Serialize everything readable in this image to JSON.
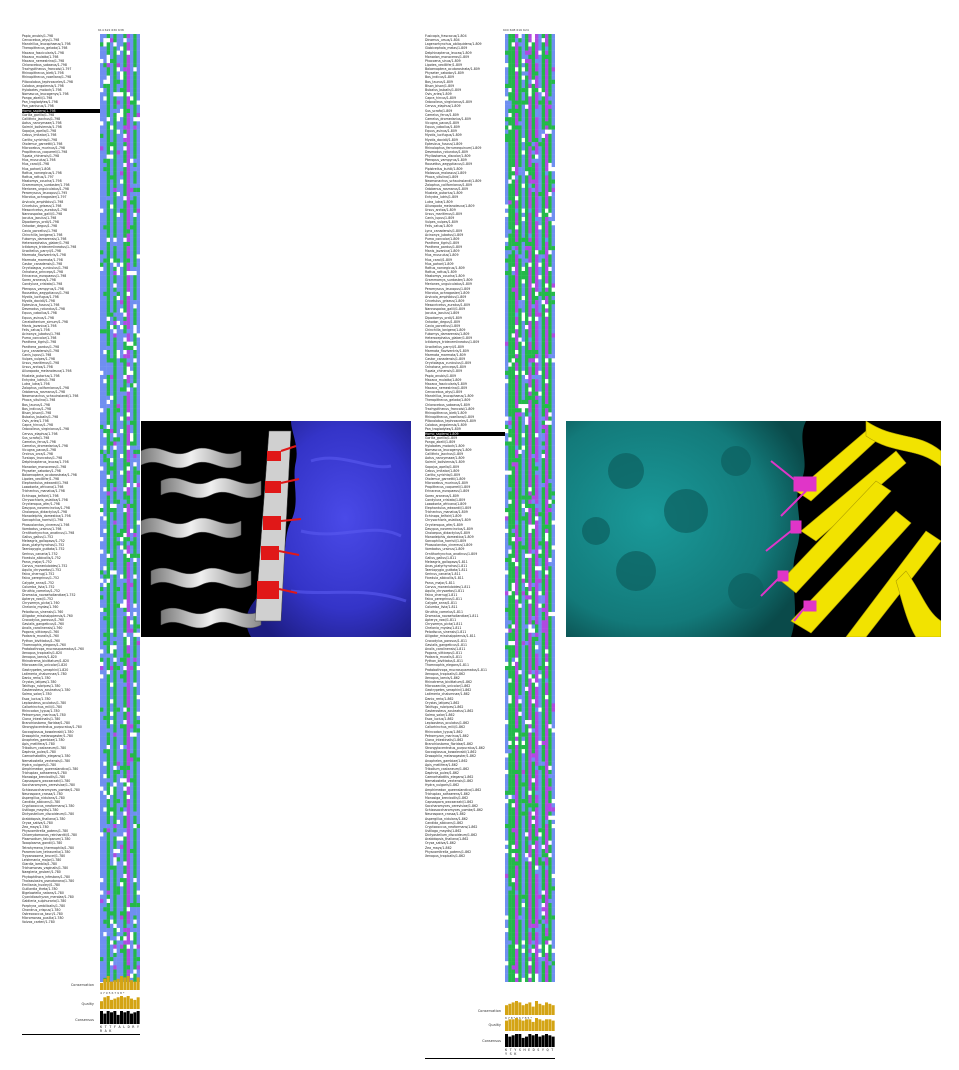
{
  "left_panel": {
    "header_numbers": "614  622  630  638",
    "sequence_names": [
      "Papio_anubis/1-798",
      "Cercocebus_atys/1-798",
      "Mandrillus_leucophaeus/1-798",
      "Theropithecus_gelada/1-798",
      "Macaca_fascicularis/1-798",
      "Macaca_mulatta/1-798",
      "Macaca_nemestrina/1-798",
      "Chlorocebus_sabaeus/1-798",
      "Trachypithecus_francoisi/1-797",
      "Rhinopithecus_bieti/1-798",
      "Rhinopithecus_roxellana/1-798",
      "Piliocolobus_tephrosceles/1-798",
      "Colobus_angolensis/1-798",
      "Hylobates_moloch/1-798",
      "Nomascus_leucogenys/1-798",
      "Pongo_abelii/1-798",
      "Pan_troglodytes/1-798",
      "Pan_paniscus/1-798",
      "Homo_sapiens/1-798",
      "Gorilla_gorilla/1-798",
      "Callithrix_jacchus/1-798",
      "Aotus_nancymaae/1-798",
      "Saimiri_boliviensis/1-798",
      "Sapajus_apella/1-798",
      "Cebus_imitator/1-798",
      "Carlito_syrichta/1-798",
      "Otolemur_garnettii/1-798",
      "Microcebus_murinus/1-798",
      "Propithecus_coquereli/1-798",
      "Tupaia_chinensis/1-798",
      "Mus_musculus/1-798",
      "Mus_caroli/1-798",
      "Mus_pahari/1-808",
      "Rattus_norvegicus/1-798",
      "Rattus_rattus/1-797",
      "Mastomys_coucha/1-798",
      "Grammomys_surdaster/1-798",
      "Meriones_unguiculatus/1-798",
      "Peromyscus_leucopus/1-795",
      "Microtus_ochrogaster/1-797",
      "Arvicola_amphibius/1-798",
      "Cricetulus_griseus/1-798",
      "Mesocricetus_auratus/1-798",
      "Nannospalax_galili/1-798",
      "Jaculus_jaculus/1-798",
      "Dipodomys_ordii/1-798",
      "Octodon_degus/1-798",
      "Cavia_porcellus/1-798",
      "Chinchilla_lanigera/1-798",
      "Fukomys_damarensis/1-798",
      "Heterocephalus_glaber/1-798",
      "Ictidomys_tridecemlineatus/1-798",
      "Urocitellus_parryii/1-798",
      "Marmota_flaviventris/1-798",
      "Marmota_marmota/1-798",
      "Castor_canadensis/1-798",
      "Oryctolagus_cuniculus/1-798",
      "Ochotona_princeps/1-798",
      "Erinaceus_europaeus/1-798",
      "Sorex_araneus/1-798",
      "Condylura_cristata/1-798",
      "Pteropus_vampyrus/1-798",
      "Rousettus_aegyptiacus/1-798",
      "Myotis_lucifugus/1-798",
      "Myotis_davidii/1-798",
      "Eptesicus_fuscus/1-798",
      "Desmodus_rotundus/1-798",
      "Equus_caballus/1-798",
      "Equus_asinus/1-798",
      "Ceratotherium_simum/1-798",
      "Manis_javanica/1-798",
      "Felis_catus/1-798",
      "Acinonyx_jubatus/1-798",
      "Puma_concolor/1-798",
      "Panthera_tigris/1-798",
      "Panthera_pardus/1-798",
      "Lynx_canadensis/1-798",
      "Canis_lupus/1-798",
      "Vulpes_vulpes/1-798",
      "Ursus_maritimus/1-798",
      "Ursus_arctos/1-798",
      "Ailuropoda_melanoleuca/1-798",
      "Mustela_putorius/1-798",
      "Enhydra_lutris/1-798",
      "Lutra_lutra/1-798",
      "Zalophus_californianus/1-798",
      "Odobenus_rosmarus/1-798",
      "Neomonachus_schauinslandi/1-798",
      "Phoca_vitulina/1-798",
      "Bos_taurus/1-798",
      "Bos_indicus/1-798",
      "Bison_bison/1-798",
      "Bubalus_bubalis/1-798",
      "Ovis_aries/1-798",
      "Capra_hircus/1-798",
      "Odocoileus_virginianus/1-798",
      "Cervus_elaphus/1-798",
      "Sus_scrofa/1-798",
      "Camelus_ferus/1-798",
      "Camelus_dromedarius/1-798",
      "Vicugna_pacos/1-798",
      "Orcinus_orca/1-798",
      "Tursiops_truncatus/1-798",
      "Delphinapterus_leucas/1-798",
      "Monodon_monoceros/1-798",
      "Physeter_catodon/1-798",
      "Balaenoptera_acutorostrata/1-798",
      "Lipotes_vexillifer/1-798",
      "Elephantulus_edwardii/1-798",
      "Loxodonta_africana/1-798",
      "Trichechus_manatus/1-798",
      "Echinops_telfairi/1-798",
      "Chrysochloris_asiatica/1-798",
      "Orycteropus_afer/1-798",
      "Dasypus_novemcinctus/1-798",
      "Choloepus_didactylus/1-798",
      "Monodelphis_domestica/1-798",
      "Sarcophilus_harrisii/1-798",
      "Phascolarctos_cinereus/1-798",
      "Vombatus_ursinus/1-798",
      "Ornithorhynchus_anatinus/1-798",
      "Gallus_gallus/1-752",
      "Meleagris_gallopavo/1-752",
      "Anas_platyrhynchos/1-752",
      "Taeniopygia_guttata/1-752",
      "Serinus_canaria/1-752",
      "Ficedula_albicollis/1-752",
      "Parus_major/1-752",
      "Corvus_moneduloides/1-752",
      "Aquila_chrysaetos/1-752",
      "Falco_cherrug/1-752",
      "Falco_peregrinus/1-752",
      "Calypte_anna/1-752",
      "Columba_livia/1-752",
      "Struthio_camelus/1-752",
      "Dromaius_novaehollandiae/1-752",
      "Apteryx_rowi/1-752",
      "Chrysemys_picta/1-760",
      "Chelonia_mydas/1-760",
      "Pelodiscus_sinensis/1-760",
      "Alligator_mississippiensis/1-760",
      "Crocodylus_porosus/1-760",
      "Gavialis_gangeticus/1-760",
      "Anolis_carolinensis/1-760",
      "Pogona_vitticeps/1-760",
      "Podarcis_muralis/1-760",
      "Python_bivittatus/1-760",
      "Thamnophis_elegans/1-760",
      "Protobothrops_mucrosquamatus/1-760",
      "Xenopus_tropicalis/1-820",
      "Xenopus_laevis/1-820",
      "Rhinatrema_bivittatum/1-820",
      "Microcaecilia_unicolor/1-820",
      "Geotrypetes_seraphini/1-820",
      "Latimeria_chalumnae/1-780",
      "Danio_rerio/1-780",
      "Oryzias_latipes/1-780",
      "Takifugu_rubripes/1-780",
      "Gasterosteus_aculeatus/1-780",
      "Salmo_salar/1-780",
      "Esox_lucius/1-780",
      "Lepisosteus_oculatus/1-780",
      "Callorhinchus_milii/1-780",
      "Rhincodon_typus/1-780",
      "Petromyzon_marinus/1-780",
      "Ciona_intestinalis/1-780",
      "Branchiostoma_floridae/1-780",
      "Strongylocentrotus_purpuratus/1-780",
      "Saccoglossus_kowalevskii/1-780",
      "Drosophila_melanogaster/1-780",
      "Anopheles_gambiae/1-780",
      "Apis_mellifera/1-780",
      "Tribolium_castaneum/1-780",
      "Daphnia_pulex/1-780",
      "Caenorhabditis_elegans/1-780",
      "Nematostella_vectensis/1-780",
      "Hydra_vulgaris/1-780",
      "Amphimedon_queenslandica/1-780",
      "Trichoplax_adhaerens/1-780",
      "Monosiga_brevicollis/1-780",
      "Capsaspora_owczarzaki/1-780",
      "Saccharomyces_cerevisiae/1-780",
      "Schizosaccharomyces_pombe/1-780",
      "Neurospora_crassa/1-780",
      "Aspergillus_nidulans/1-780",
      "Candida_albicans/1-780",
      "Cryptococcus_neoformans/1-780",
      "Ustilago_maydis/1-780",
      "Dictyostelium_discoideum/1-780",
      "Arabidopsis_thaliana/1-780",
      "Oryza_sativa/1-780",
      "Zea_mays/1-780",
      "Physcomitrella_patens/1-780",
      "Chlamydomonas_reinhardtii/1-780",
      "Plasmodium_falciparum/1-780",
      "Toxoplasma_gondii/1-780",
      "Tetrahymena_thermophila/1-780",
      "Paramecium_tetraurelia/1-780",
      "Trypanosoma_brucei/1-780",
      "Leishmania_major/1-780",
      "Giardia_lamblia/1-780",
      "Trichomonas_vaginalis/1-780",
      "Naegleria_gruberi/1-780",
      "Phytophthora_infestans/1-780",
      "Thalassiosira_pseudonana/1-780",
      "Emiliania_huxleyi/1-780",
      "Guillardia_theta/1-780",
      "Bigelowiella_natans/1-780",
      "Cyanidioschyzon_merolae/1-780",
      "Galdieria_sulphuraria/1-780",
      "Porphyra_umbilicalis/1-780",
      "Chondrus_crispus/1-780",
      "Ostreococcus_tauri/1-780",
      "Micromonas_pusilla/1-780",
      "Volvox_carteri/1-780"
    ],
    "conservation_label": "Conservation",
    "quality_label": "Quality",
    "consensus_label": "Consensus",
    "consensus_sequence": "K T T F A L D R Y R A K",
    "conservation_scores": "4 7 9 5 6 7 9 8 *"
  },
  "right_panel": {
    "header_numbers": "600  608  616  624",
    "sequence_names": [
      "Fusicapis_frascacus/1-804",
      "Dinomus_ursus/1-804",
      "Lagenorhynchus_obliquidens/1-809",
      "Globicephala_melas/1-809",
      "Delphinapterus_leucas/1-809",
      "Monodon_monoceros/1-809",
      "Phocoena_sinus/1-809",
      "Lipotes_vexillifer/1-809",
      "Balaenoptera_acutorostrata/1-809",
      "Physeter_catodon/1-809",
      "Bos_indicus/1-809",
      "Bos_taurus/1-809",
      "Bison_bison/1-809",
      "Bubalus_bubalis/1-809",
      "Ovis_aries/1-809",
      "Capra_hircus/1-809",
      "Odocoileus_virginianus/1-809",
      "Cervus_elaphus/1-809",
      "Sus_scrofa/1-809",
      "Camelus_ferus/1-809",
      "Camelus_dromedarius/1-809",
      "Vicugna_pacos/1-809",
      "Equus_caballus/1-809",
      "Equus_asinus/1-809",
      "Myotis_lucifugus/1-809",
      "Myotis_davidii/1-809",
      "Eptesicus_fuscus/1-809",
      "Rhinolophus_ferrumequinum/1-809",
      "Desmodus_rotundus/1-809",
      "Phyllostomus_discolor/1-809",
      "Pteropus_vampyrus/1-809",
      "Rousettus_aegyptiacus/1-809",
      "Pipistrellus_kuhlii/1-809",
      "Molossus_molossus/1-809",
      "Phoca_vitulina/1-809",
      "Neomonachus_schauinslandi/1-809",
      "Zalophus_californianus/1-809",
      "Odobenus_rosmarus/1-809",
      "Mustela_putorius/1-809",
      "Enhydra_lutris/1-809",
      "Lutra_lutra/1-809",
      "Ailuropoda_melanoleuca/1-809",
      "Ursus_arctos/1-809",
      "Ursus_maritimus/1-809",
      "Canis_lupus/1-809",
      "Vulpes_vulpes/1-809",
      "Felis_catus/1-809",
      "Lynx_canadensis/1-809",
      "Acinonyx_jubatus/1-809",
      "Puma_concolor/1-809",
      "Panthera_tigris/1-809",
      "Panthera_pardus/1-809",
      "Manis_javanica/1-809",
      "Mus_musculus/1-809",
      "Mus_caroli/1-809",
      "Mus_pahari/1-809",
      "Rattus_norvegicus/1-809",
      "Rattus_rattus/1-809",
      "Mastomys_coucha/1-809",
      "Grammomys_surdaster/1-809",
      "Meriones_unguiculatus/1-809",
      "Peromyscus_leucopus/1-809",
      "Microtus_ochrogaster/1-809",
      "Arvicola_amphibius/1-809",
      "Cricetulus_griseus/1-809",
      "Mesocricetus_auratus/1-809",
      "Nannospalax_galili/1-809",
      "Jaculus_jaculus/1-809",
      "Dipodomys_ordii/1-809",
      "Octodon_degus/1-809",
      "Cavia_porcellus/1-809",
      "Chinchilla_lanigera/1-809",
      "Fukomys_damarensis/1-809",
      "Heterocephalus_glaber/1-809",
      "Ictidomys_tridecemlineatus/1-809",
      "Urocitellus_parryii/1-809",
      "Marmota_flaviventris/1-809",
      "Marmota_marmota/1-809",
      "Castor_canadensis/1-809",
      "Oryctolagus_cuniculus/1-809",
      "Ochotona_princeps/1-809",
      "Tupaia_chinensis/1-809",
      "Papio_anubis/1-809",
      "Macaca_mulatta/1-809",
      "Macaca_fascicularis/1-809",
      "Macaca_nemestrina/1-809",
      "Cercocebus_atys/1-809",
      "Mandrillus_leucophaeus/1-809",
      "Theropithecus_gelada/1-809",
      "Chlorocebus_sabaeus/1-809",
      "Trachypithecus_francoisi/1-809",
      "Rhinopithecus_bieti/1-809",
      "Rhinopithecus_roxellana/1-809",
      "Piliocolobus_tephrosceles/1-809",
      "Colobus_angolensis/1-809",
      "Pan_troglodytes/1-809",
      "Homo_sapiens/1-809",
      "Gorilla_gorilla/1-809",
      "Pongo_abelii/1-809",
      "Hylobates_moloch/1-809",
      "Nomascus_leucogenys/1-809",
      "Callithrix_jacchus/1-809",
      "Aotus_nancymaae/1-809",
      "Saimiri_boliviensis/1-809",
      "Sapajus_apella/1-809",
      "Cebus_imitator/1-809",
      "Carlito_syrichta/1-809",
      "Otolemur_garnettii/1-809",
      "Microcebus_murinus/1-809",
      "Propithecus_coquereli/1-809",
      "Erinaceus_europaeus/1-809",
      "Sorex_araneus/1-809",
      "Condylura_cristata/1-809",
      "Loxodonta_africana/1-809",
      "Elephantulus_edwardii/1-809",
      "Trichechus_manatus/1-809",
      "Echinops_telfairi/1-809",
      "Chrysochloris_asiatica/1-809",
      "Orycteropus_afer/1-809",
      "Dasypus_novemcinctus/1-809",
      "Choloepus_didactylus/1-809",
      "Monodelphis_domestica/1-809",
      "Sarcophilus_harrisii/1-809",
      "Phascolarctos_cinereus/1-809",
      "Vombatus_ursinus/1-809",
      "Ornithorhynchus_anatinus/1-809",
      "Gallus_gallus/1-811",
      "Meleagris_gallopavo/1-811",
      "Anas_platyrhynchos/1-811",
      "Taeniopygia_guttata/1-811",
      "Serinus_canaria/1-811",
      "Ficedula_albicollis/1-811",
      "Parus_major/1-811",
      "Corvus_moneduloides/1-811",
      "Aquila_chrysaetos/1-811",
      "Falco_cherrug/1-811",
      "Falco_peregrinus/1-811",
      "Calypte_anna/1-811",
      "Columba_livia/1-811",
      "Struthio_camelus/1-811",
      "Dromaius_novaehollandiae/1-811",
      "Apteryx_rowi/1-811",
      "Chrysemys_picta/1-811",
      "Chelonia_mydas/1-811",
      "Pelodiscus_sinensis/1-811",
      "Alligator_mississippiensis/1-811",
      "Crocodylus_porosus/1-811",
      "Gavialis_gangeticus/1-811",
      "Anolis_carolinensis/1-811",
      "Pogona_vitticeps/1-811",
      "Podarcis_muralis/1-811",
      "Python_bivittatus/1-811",
      "Thamnophis_elegans/1-811",
      "Protobothrops_mucrosquamatus/1-811",
      "Xenopus_tropicalis/1-862",
      "Xenopus_laevis/1-862",
      "Rhinatrema_bivittatum/1-862",
      "Microcaecilia_unicolor/1-862",
      "Geotrypetes_seraphini/1-862",
      "Latimeria_chalumnae/1-862",
      "Danio_rerio/1-862",
      "Oryzias_latipes/1-862",
      "Takifugu_rubripes/1-862",
      "Gasterosteus_aculeatus/1-862",
      "Salmo_salar/1-862",
      "Esox_lucius/1-862",
      "Lepisosteus_oculatus/1-862",
      "Callorhinchus_milii/1-862",
      "Rhincodon_typus/1-862",
      "Petromyzon_marinus/1-862",
      "Ciona_intestinalis/1-862",
      "Branchiostoma_floridae/1-862",
      "Strongylocentrotus_purpuratus/1-862",
      "Saccoglossus_kowalevskii/1-862",
      "Drosophila_melanogaster/1-862",
      "Anopheles_gambiae/1-862",
      "Apis_mellifera/1-862",
      "Tribolium_castaneum/1-862",
      "Daphnia_pulex/1-862",
      "Caenorhabditis_elegans/1-862",
      "Nematostella_vectensis/1-862",
      "Hydra_vulgaris/1-862",
      "Amphimedon_queenslandica/1-862",
      "Trichoplax_adhaerens/1-862",
      "Monosiga_brevicollis/1-862",
      "Capsaspora_owczarzaki/1-862",
      "Saccharomyces_cerevisiae/1-862",
      "Schizosaccharomyces_pombe/1-862",
      "Neurospora_crassa/1-862",
      "Aspergillus_nidulans/1-862",
      "Candida_albicans/1-862",
      "Cryptococcus_neoformans/1-862",
      "Ustilago_maydis/1-862",
      "Dictyostelium_discoideum/1-862",
      "Arabidopsis_thaliana/1-862",
      "Oryza_sativa/1-862",
      "Zea_mays/1-862",
      "Physcomitrella_patens/1-862",
      "Xenopus_tropicalis/1-862"
    ],
    "conservation_label": "Conservation",
    "quality_label": "Quality",
    "consensus_label": "Consensus",
    "consensus_sequence": "K T Y S H E D S Y Q T Y S K",
    "conservation_scores": "6 7 8 * 9 6 7 8 5 *"
  },
  "colors": {
    "hydrophobic": "#6f8ff0",
    "polar": "#24b84a",
    "acidic": "#b04ae0",
    "basic": "#e05050",
    "glycine": "#e0a030",
    "gap": "#ffffff",
    "conservation": "#d4a414",
    "quality": "#d4a414",
    "consensus": "#000000",
    "left_receptor": "#3232d8",
    "left_ligand_helix": "#d8d8d8",
    "left_contacts": "#e02020",
    "right_receptor": "#137a7a",
    "right_ligand": "#f2e300",
    "right_contacts": "#e035c8"
  }
}
